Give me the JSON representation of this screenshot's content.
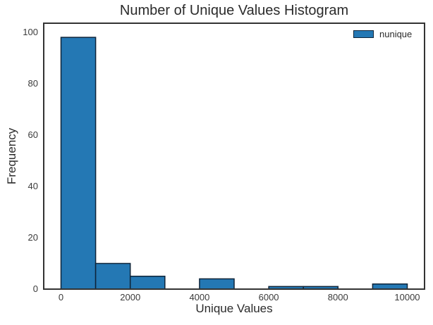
{
  "title": "Number of Unique Values Histogram",
  "chart_data": {
    "type": "bar",
    "title": "Number of Unique Values Histogram",
    "xlabel": "Unique Values",
    "ylabel": "Frequency",
    "bin_start": 0,
    "bin_width": 1000,
    "bin_edges": [
      0,
      1000,
      2000,
      3000,
      4000,
      5000,
      6000,
      7000,
      8000,
      9000,
      10000
    ],
    "values": [
      98,
      10,
      5,
      0,
      4,
      0,
      1,
      1,
      0,
      2
    ],
    "x_ticks": [
      0,
      2000,
      4000,
      6000,
      8000,
      10000
    ],
    "y_ticks": [
      0,
      20,
      40,
      60,
      80,
      100
    ],
    "xlim": [
      -500,
      10500
    ],
    "ylim": [
      0,
      103.5
    ],
    "grid": false,
    "legend": {
      "label": "nunique",
      "position": "upper right"
    },
    "colors": {
      "bar_fill": "#2478b4",
      "bar_edge": "#0e2439",
      "spine": "#333333",
      "text": "#2b2b2b"
    }
  }
}
